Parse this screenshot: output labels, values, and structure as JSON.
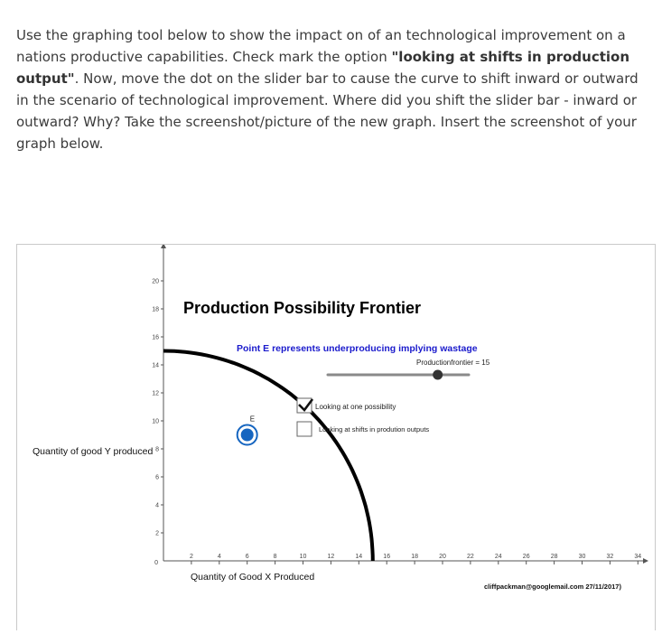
{
  "instructions": {
    "seg1": "Use the graphing tool below to show the impact on of an technological improvement on a nations productive capabilities. Check mark the option ",
    "seg2": "\"looking at shifts in production output\"",
    "seg3": ". Now, move the dot on the slider bar to cause the curve to shift inward or outward  in the scenario of technological improvement.",
    "seg4": "  Where did you shift the slider bar - inward or outward? Why? Take the screenshot/picture of the new graph. Insert the screenshot of your graph below."
  },
  "graph": {
    "title": "Production Possibility Frontier",
    "annotation": "Point E represents underproducing implying wastage",
    "slider_label": "Productionfrontier = 15",
    "slider_fraction": 0.78,
    "checkbox1_label": "Looking at one possibility",
    "checkbox1_checked": true,
    "checkbox2_label": "Looking at shifts in prodution outputs",
    "checkbox2_checked": false,
    "point_label": "E",
    "point_value": [
      6,
      9
    ],
    "ppf_radius": 15,
    "x_label": "Quantity of Good X Produced",
    "y_label": "Quantity of good Y produced",
    "credit": "cliffpackman@googlemail.com 27/11/2017)",
    "x_ticks": [
      "2",
      "4",
      "6",
      "8",
      "10",
      "12",
      "14",
      "16",
      "18",
      "20",
      "22",
      "24",
      "26",
      "28",
      "30",
      "32",
      "34"
    ],
    "y_ticks": [
      "2",
      "4",
      "6",
      "8",
      "10",
      "12",
      "14",
      "16",
      "18",
      "20"
    ],
    "origin_label": "0",
    "colors": {
      "curve": "#000000",
      "annotation": "#1a1acc",
      "point": "#1565c0",
      "slider_track": "#888888"
    }
  }
}
